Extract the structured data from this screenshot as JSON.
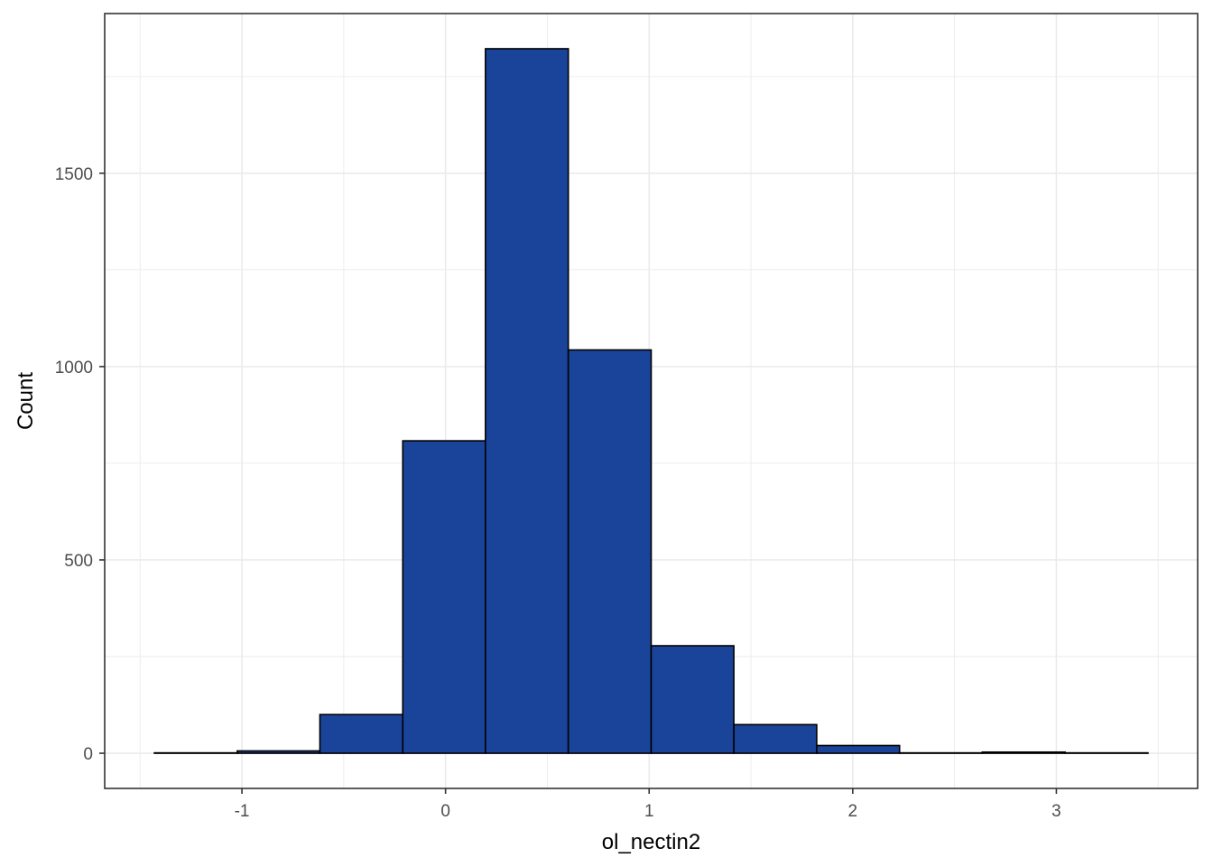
{
  "chart_data": {
    "type": "bar",
    "subtype": "histogram",
    "xlabel": "ol_nectin2",
    "ylabel": "Count",
    "bin_width": 0.4066,
    "bins": [
      {
        "start": -1.43,
        "end": -1.023,
        "count": 1
      },
      {
        "start": -1.023,
        "end": -0.617,
        "count": 6
      },
      {
        "start": -0.617,
        "end": -0.21,
        "count": 100
      },
      {
        "start": -0.21,
        "end": 0.196,
        "count": 808
      },
      {
        "start": 0.196,
        "end": 0.603,
        "count": 1822
      },
      {
        "start": 0.603,
        "end": 1.01,
        "count": 1043
      },
      {
        "start": 1.01,
        "end": 1.416,
        "count": 278
      },
      {
        "start": 1.416,
        "end": 1.823,
        "count": 74
      },
      {
        "start": 1.823,
        "end": 2.23,
        "count": 20
      },
      {
        "start": 2.23,
        "end": 2.636,
        "count": 1
      },
      {
        "start": 2.636,
        "end": 3.043,
        "count": 3
      },
      {
        "start": 3.043,
        "end": 3.45,
        "count": 1
      }
    ],
    "xlim": [
      -1.674,
      3.694
    ],
    "ylim": [
      -91,
      1913
    ],
    "x_ticks": [
      -1,
      0,
      1,
      2,
      3
    ],
    "x_tick_labels": [
      "-1",
      "0",
      "1",
      "2",
      "3"
    ],
    "y_ticks": [
      0,
      500,
      1000,
      1500
    ],
    "y_tick_labels": [
      "0",
      "500",
      "1000",
      "1500"
    ],
    "grid": true,
    "fill_color": "#1a4499",
    "outline_color": "#000000",
    "grid_color": "#ebebeb",
    "panel_border_color": "#333333"
  }
}
